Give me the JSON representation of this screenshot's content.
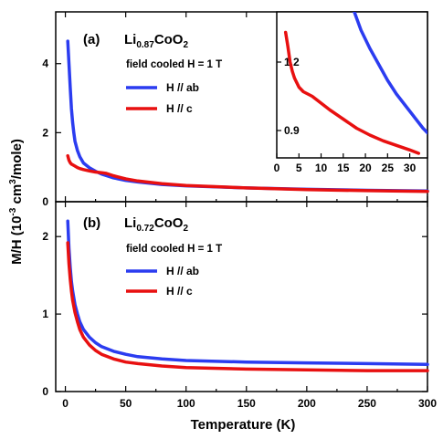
{
  "chart_data": {
    "type": "line",
    "ylabel_main": "M/H (10",
    "ylabel_exp1": "-3",
    "ylabel_mid": " cm",
    "ylabel_exp2": "3",
    "ylabel_end": "/mole)",
    "xlabel": "Temperature (K)",
    "panels": [
      {
        "label": "(a)",
        "compound_base": "Li",
        "compound_sub": "0.87",
        "compound_rest": "CoO",
        "compound_sub2": "2",
        "note": "field cooled  H = 1 T",
        "xlim": [
          -8,
          300
        ],
        "ylim": [
          0,
          5.5
        ],
        "xticks": [
          0,
          50,
          100,
          150,
          200,
          250,
          300
        ],
        "yticks": [
          0,
          2,
          4
        ],
        "series": [
          {
            "name": "H // ab",
            "color": "#2b3cf0",
            "x": [
              2,
              3,
              4,
              5,
              6,
              7,
              8,
              10,
              12,
              15,
              20,
              25,
              30,
              40,
              50,
              60,
              80,
              100,
              150,
              200,
              250,
              300
            ],
            "y": [
              4.65,
              4.0,
              3.3,
              2.7,
              2.3,
              2.0,
              1.75,
              1.48,
              1.3,
              1.12,
              0.98,
              0.88,
              0.8,
              0.69,
              0.62,
              0.57,
              0.5,
              0.46,
              0.4,
              0.36,
              0.33,
              0.31
            ]
          },
          {
            "name": "H // c",
            "color": "#e81010",
            "x": [
              2,
              3,
              4,
              5,
              6,
              8,
              10,
              12,
              15,
              20,
              25,
              30,
              34,
              40,
              50,
              60,
              80,
              100,
              150,
              200,
              250,
              300
            ],
            "y": [
              1.33,
              1.2,
              1.13,
              1.09,
              1.07,
              1.03,
              0.99,
              0.96,
              0.93,
              0.89,
              0.86,
              0.84,
              0.82,
              0.75,
              0.66,
              0.6,
              0.52,
              0.47,
              0.4,
              0.35,
              0.32,
              0.3
            ]
          }
        ],
        "inset": {
          "xlim": [
            0,
            34
          ],
          "ylim": [
            0.78,
            1.42
          ],
          "xticks": [
            0,
            5,
            10,
            15,
            20,
            25,
            30
          ],
          "yticks": [
            0.9,
            1.2
          ],
          "ytick_labels": [
            "0.9",
            "1.2"
          ],
          "series": [
            {
              "name": "H // ab",
              "color": "#2b3cf0",
              "x": [
                17.5,
                19,
                21,
                23,
                25,
                27,
                29,
                31,
                33,
                34
              ],
              "y": [
                1.42,
                1.34,
                1.26,
                1.19,
                1.12,
                1.06,
                1.01,
                0.96,
                0.91,
                0.89
              ]
            },
            {
              "name": "H // c",
              "color": "#e81010",
              "x": [
                2,
                2.5,
                3,
                3.5,
                4,
                5,
                6,
                7,
                8,
                10,
                12,
                15,
                18,
                21,
                24,
                27,
                30,
                32
              ],
              "y": [
                1.33,
                1.27,
                1.2,
                1.16,
                1.13,
                1.09,
                1.07,
                1.06,
                1.05,
                1.02,
                0.99,
                0.95,
                0.91,
                0.88,
                0.855,
                0.835,
                0.815,
                0.8
              ]
            }
          ]
        }
      },
      {
        "label": "(b)",
        "compound_base": "Li",
        "compound_sub": "0.72",
        "compound_rest": "CoO",
        "compound_sub2": "2",
        "note": "field cooled  H = 1 T",
        "xlim": [
          -8,
          300
        ],
        "ylim": [
          0,
          2.45
        ],
        "xticks": [
          0,
          50,
          100,
          150,
          200,
          250,
          300
        ],
        "yticks": [
          0,
          1,
          2
        ],
        "series": [
          {
            "name": "H // ab",
            "color": "#2b3cf0",
            "x": [
              2,
              3,
              4,
              5,
              6,
              8,
              10,
              12,
              15,
              20,
              25,
              30,
              40,
              50,
              60,
              80,
              100,
              150,
              200,
              250,
              300
            ],
            "y": [
              2.2,
              1.85,
              1.6,
              1.42,
              1.3,
              1.12,
              1.0,
              0.9,
              0.8,
              0.7,
              0.63,
              0.58,
              0.52,
              0.48,
              0.45,
              0.42,
              0.4,
              0.38,
              0.37,
              0.36,
              0.35
            ]
          },
          {
            "name": "H // c",
            "color": "#e81010",
            "x": [
              2,
              3,
              4,
              5,
              6,
              8,
              10,
              12,
              15,
              20,
              25,
              30,
              40,
              50,
              60,
              80,
              100,
              150,
              200,
              250,
              300
            ],
            "y": [
              1.92,
              1.65,
              1.45,
              1.3,
              1.18,
              1.02,
              0.9,
              0.8,
              0.7,
              0.6,
              0.53,
              0.48,
              0.42,
              0.38,
              0.36,
              0.33,
              0.31,
              0.29,
              0.28,
              0.27,
              0.27
            ]
          }
        ]
      }
    ]
  }
}
